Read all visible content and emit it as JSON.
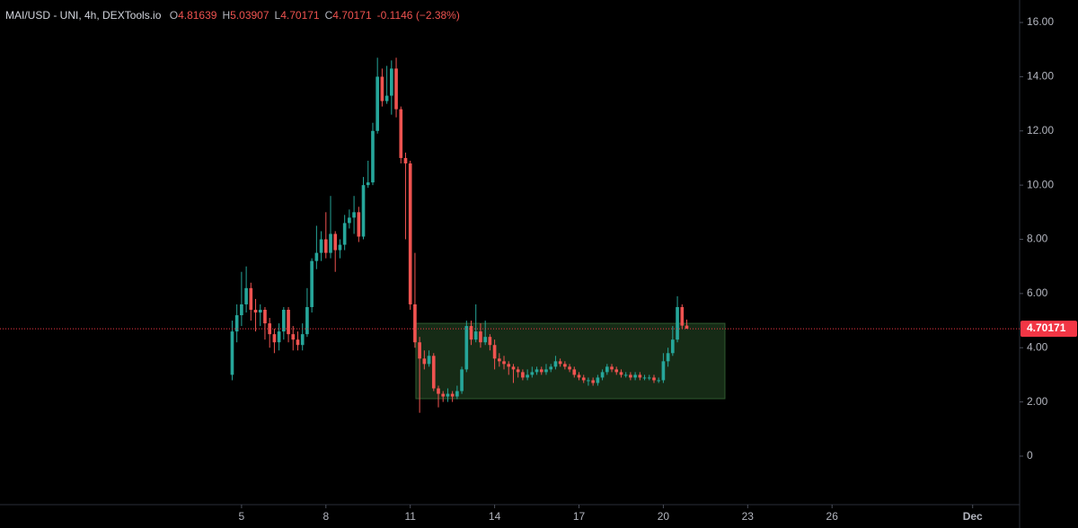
{
  "chart_data": {
    "type": "candlestick",
    "header": {
      "symbol": "MAI/USD - UNI, 4h, DEXTools.io",
      "fields": [
        {
          "key": "O",
          "value": "4.81639"
        },
        {
          "key": "H",
          "value": "5.03907"
        },
        {
          "key": "L",
          "value": "4.70171"
        },
        {
          "key": "C",
          "value": "4.70171"
        }
      ],
      "change": "-0.1146 (−2.38%)"
    },
    "x": [
      4.667,
      4.833,
      5,
      5.167,
      5.333,
      5.5,
      5.667,
      5.833,
      6,
      6.167,
      6.333,
      6.5,
      6.667,
      6.833,
      7,
      7.167,
      7.333,
      7.5,
      7.667,
      7.833,
      8,
      8.167,
      8.333,
      8.5,
      8.667,
      8.833,
      9,
      9.167,
      9.333,
      9.5,
      9.667,
      9.833,
      10,
      10.167,
      10.333,
      10.5,
      10.667,
      10.833,
      11,
      11.167,
      11.333,
      11.5,
      11.667,
      11.833,
      12,
      12.167,
      12.333,
      12.5,
      12.667,
      12.833,
      13,
      13.167,
      13.333,
      13.5,
      13.667,
      13.833,
      14,
      14.167,
      14.333,
      14.5,
      14.667,
      14.833,
      15,
      15.167,
      15.333,
      15.5,
      15.667,
      15.833,
      16,
      16.167,
      16.333,
      16.5,
      16.667,
      16.833,
      17,
      17.167,
      17.333,
      17.5,
      17.667,
      17.833,
      18,
      18.167,
      18.333,
      18.5,
      18.667,
      18.833,
      19,
      19.167,
      19.333,
      19.5,
      19.667,
      19.833,
      20,
      20.167,
      20.333,
      20.5,
      20.667,
      20.833
    ],
    "open": [
      3.0,
      4.6,
      5.2,
      5.6,
      6.2,
      5.4,
      5.3,
      5.4,
      4.9,
      4.5,
      4.2,
      4.6,
      5.4,
      4.5,
      4.3,
      4.1,
      4.5,
      5.5,
      7.2,
      7.5,
      8.0,
      7.5,
      8.2,
      7.6,
      7.8,
      8.6,
      8.8,
      9.0,
      8.1,
      10.0,
      10.1,
      12.0,
      14.0,
      13.1,
      13.3,
      14.3,
      12.8,
      11.0,
      10.8,
      5.6,
      4.2,
      3.6,
      3.4,
      3.7,
      2.5,
      2.3,
      2.2,
      2.3,
      2.2,
      2.4,
      3.2,
      4.8,
      4.3,
      4.6,
      4.2,
      4.4,
      4.1,
      3.6,
      3.5,
      3.4,
      3.3,
      3.2,
      3.1,
      2.9,
      3.0,
      3.1,
      3.2,
      3.1,
      3.2,
      3.3,
      3.5,
      3.4,
      3.3,
      3.2,
      3.0,
      2.9,
      2.8,
      2.8,
      2.7,
      2.9,
      3.1,
      3.3,
      3.2,
      3.1,
      3.0,
      3.0,
      2.9,
      3.0,
      2.9,
      2.9,
      2.9,
      2.8,
      2.8,
      3.5,
      3.8,
      4.3,
      5.5,
      4.81639
    ],
    "high": [
      5.0,
      5.6,
      6.8,
      7.0,
      6.4,
      5.8,
      5.6,
      5.5,
      5.1,
      4.7,
      4.9,
      5.5,
      5.5,
      4.8,
      4.6,
      4.9,
      6.2,
      7.3,
      8.5,
      8.3,
      9.0,
      9.6,
      8.3,
      8.0,
      8.9,
      9.1,
      9.6,
      9.2,
      10.3,
      10.9,
      12.3,
      14.7,
      14.3,
      14.4,
      14.6,
      14.7,
      12.9,
      11.2,
      10.9,
      7.5,
      4.4,
      3.9,
      3.9,
      3.8,
      2.6,
      2.4,
      2.5,
      2.4,
      2.6,
      3.3,
      5.0,
      5.0,
      5.6,
      4.9,
      5.0,
      4.5,
      4.3,
      3.8,
      3.7,
      3.5,
      3.4,
      3.3,
      3.2,
      3.2,
      3.3,
      3.3,
      3.3,
      3.4,
      3.4,
      3.7,
      3.6,
      3.5,
      3.4,
      3.3,
      3.1,
      3.0,
      2.9,
      2.9,
      3.0,
      3.2,
      3.4,
      3.4,
      3.3,
      3.2,
      3.1,
      3.1,
      3.1,
      3.1,
      3.0,
      3.0,
      3.0,
      2.9,
      3.8,
      4.0,
      4.8,
      5.9,
      5.6,
      5.03907
    ],
    "low": [
      2.8,
      4.2,
      4.8,
      5.3,
      5.0,
      4.6,
      4.8,
      4.3,
      4.0,
      3.8,
      3.9,
      4.3,
      4.2,
      3.9,
      3.9,
      3.9,
      4.4,
      5.3,
      6.9,
      7.2,
      7.3,
      7.3,
      6.8,
      7.3,
      7.6,
      8.4,
      8.2,
      7.9,
      8.0,
      9.9,
      10.0,
      11.9,
      12.9,
      13.0,
      12.6,
      12.5,
      10.8,
      8.0,
      5.4,
      4.0,
      1.6,
      3.2,
      3.3,
      2.4,
      1.8,
      2.0,
      2.0,
      2.0,
      2.1,
      2.3,
      3.1,
      4.1,
      4.2,
      4.0,
      4.1,
      3.9,
      3.2,
      3.3,
      3.2,
      3.0,
      2.7,
      2.9,
      2.8,
      2.8,
      2.9,
      3.0,
      3.0,
      3.0,
      3.1,
      3.2,
      3.3,
      3.2,
      3.1,
      2.9,
      2.8,
      2.7,
      2.6,
      2.6,
      2.6,
      2.8,
      3.0,
      3.1,
      3.0,
      2.9,
      2.9,
      2.8,
      2.8,
      2.8,
      2.8,
      2.8,
      2.7,
      2.7,
      2.7,
      3.3,
      3.7,
      4.2,
      4.7,
      4.70171
    ],
    "close": [
      4.6,
      5.2,
      5.6,
      6.2,
      5.4,
      5.3,
      5.4,
      4.9,
      4.5,
      4.2,
      4.6,
      5.4,
      4.5,
      4.3,
      4.1,
      4.5,
      5.5,
      7.2,
      7.5,
      8.0,
      7.5,
      8.2,
      7.6,
      7.8,
      8.6,
      8.8,
      9.0,
      8.1,
      10.0,
      10.1,
      12.0,
      14.0,
      13.1,
      13.3,
      14.3,
      12.8,
      11.0,
      10.8,
      5.6,
      4.2,
      3.6,
      3.4,
      3.7,
      2.5,
      2.3,
      2.2,
      2.3,
      2.2,
      2.4,
      3.2,
      4.8,
      4.3,
      4.6,
      4.2,
      4.4,
      4.1,
      3.6,
      3.5,
      3.4,
      3.3,
      3.2,
      3.1,
      2.9,
      3.0,
      3.1,
      3.2,
      3.1,
      3.2,
      3.3,
      3.5,
      3.4,
      3.3,
      3.2,
      3.0,
      2.9,
      2.8,
      2.8,
      2.7,
      2.9,
      3.1,
      3.3,
      3.2,
      3.1,
      3.0,
      3.0,
      2.9,
      3.0,
      2.9,
      2.9,
      2.9,
      2.8,
      2.8,
      3.5,
      3.8,
      4.3,
      5.5,
      4.81639,
      4.70171
    ],
    "up_color": "#26a69a",
    "down_color": "#ef5350",
    "xlim": [
      -3.59,
      32.67
    ],
    "xticks": [
      5,
      8,
      11,
      14,
      17,
      20,
      23,
      26,
      {
        "value": 31,
        "label": "Dec"
      }
    ],
    "ylim": [
      -1.79,
      16.83
    ],
    "yticks": [
      0,
      {
        "value": 2,
        "label": "2.00"
      },
      {
        "value": 4,
        "label": "4.00"
      },
      {
        "value": 6,
        "label": "6.00"
      },
      {
        "value": 8,
        "label": "8.00"
      },
      {
        "value": 10,
        "label": "10.00"
      },
      {
        "value": 12,
        "label": "12.00"
      },
      {
        "value": 14,
        "label": "14.00"
      },
      {
        "value": 16,
        "label": "16.00"
      }
    ],
    "last_price": 4.70171,
    "last_price_color": "#f23645",
    "range_box": {
      "x": [
        11.2,
        22.19
      ],
      "y": [
        2.12,
        4.9
      ],
      "color": "#1e3a1e"
    },
    "grid": false
  }
}
